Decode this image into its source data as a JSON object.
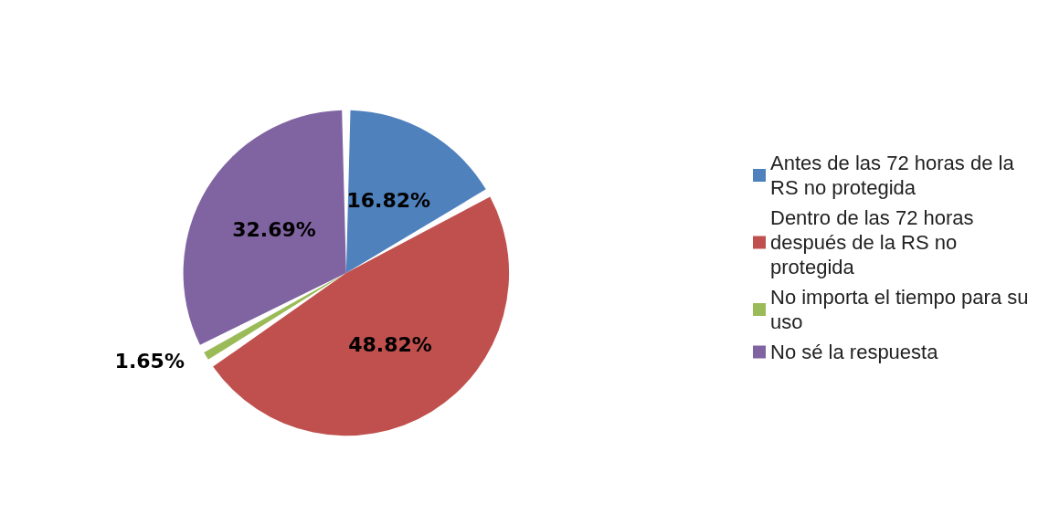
{
  "chart_data": {
    "type": "pie",
    "categories": [
      "Antes de las 72 horas de la RS no protegida",
      "Dentro de las 72 horas después de la RS no protegida",
      "No importa el tiempo para su uso",
      "No sé la respuesta"
    ],
    "values": [
      16.82,
      48.82,
      1.65,
      32.69
    ],
    "value_labels": [
      "16.82%",
      "48.82%",
      "1.65%",
      "32.69%"
    ],
    "colors": [
      "#4f81bd",
      "#c0504d",
      "#9bbb59",
      "#8064a2"
    ],
    "legend": "right"
  }
}
